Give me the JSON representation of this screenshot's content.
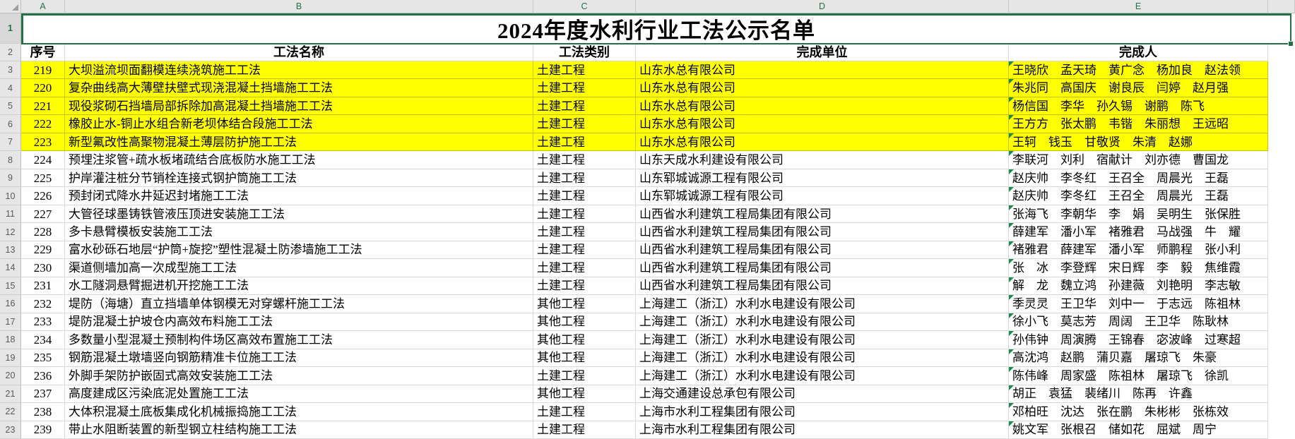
{
  "title": "2024年度水利行业工法公示名单",
  "column_letters": [
    "A",
    "B",
    "C",
    "D",
    "E"
  ],
  "row_numbers": [
    "1",
    "2",
    "3",
    "4",
    "5",
    "6",
    "7",
    "8",
    "9",
    "10",
    "11",
    "12",
    "13",
    "14",
    "15",
    "16",
    "17",
    "18",
    "19",
    "20",
    "21",
    "22",
    "23"
  ],
  "selection": {
    "selected_range": "A1",
    "selected_row_header": "1"
  },
  "table": {
    "headers": [
      "序号",
      "工法名称",
      "工法类别",
      "完成单位",
      "完成人"
    ],
    "rows": [
      [
        "219",
        "大坝溢流坝面翻模连续浇筑施工工法",
        "土建工程",
        "山东水总有限公司",
        "王晓欣　孟天琦　黄广念　杨加良　赵法领"
      ],
      [
        "220",
        "复杂曲线高大薄壁扶壁式现浇混凝土挡墙施工工法",
        "土建工程",
        "山东水总有限公司",
        "朱兆同　高国庆　谢良辰　闫婷　赵月强"
      ],
      [
        "221",
        "现役浆砌石挡墙局部拆除加高混凝土挡墙施工工法",
        "土建工程",
        "山东水总有限公司",
        "杨信国　李华　孙久锡　谢鹏　陈飞"
      ],
      [
        "222",
        "橡胶止水-铜止水组合新老坝体结合段施工工法",
        "土建工程",
        "山东水总有限公司",
        "王方方　张太鹏　韦锴　朱丽想　王远昭"
      ],
      [
        "223",
        "新型氟改性高聚物混凝土薄层防护施工工法",
        "土建工程",
        "山东水总有限公司",
        "王轲　钱玉　甘敬贤　朱清　赵娜"
      ],
      [
        "224",
        "预埋注浆管+疏水板堵疏结合底板防水施工工法",
        "土建工程",
        "山东天成水利建设有限公司",
        "李联河　刘利　宿献计　刘亦德　曹国龙"
      ],
      [
        "225",
        "护岸灌注桩分节销栓连接式钢护筒施工工法",
        "土建工程",
        "山东郓城诚源工程有限公司",
        "赵庆帅　李冬红　王召全　周晨光　王磊"
      ],
      [
        "226",
        "预封闭式降水井延迟封堵施工工法",
        "土建工程",
        "山东郓城诚源工程有限公司",
        "赵庆帅　李冬红　王召全　周晨光　王磊"
      ],
      [
        "227",
        "大管径球墨铸铁管液压顶进安装施工工法",
        "土建工程",
        "山西省水利建筑工程局集团有限公司",
        "张海飞　李朝华　李　娟　吴明生　张保胜"
      ],
      [
        "228",
        "多卡悬臂模板安装施工工法",
        "土建工程",
        "山西省水利建筑工程局集团有限公司",
        "薛建军　潘小军　褚雅君　马战强　牛　耀"
      ],
      [
        "229",
        "富水砂砾石地层“护筒+旋挖”塑性混凝土防渗墙施工工法",
        "土建工程",
        "山西省水利建筑工程局集团有限公司",
        "褚雅君　薛建军　潘小军　师鹏程　张小利"
      ],
      [
        "230",
        "渠道侧墙加高一次成型施工工法",
        "土建工程",
        "山西省水利建筑工程局集团有限公司",
        "张　冰　李登辉　宋日辉　李　毅　焦维霞"
      ],
      [
        "231",
        "水工隧洞悬臂掘进机开挖施工工法",
        "土建工程",
        "山西省水利建筑工程局集团有限公司",
        "解　龙　魏立鸿　孙建薇　刘艳明　李志敏"
      ],
      [
        "232",
        "堤防（海塘）直立挡墙单体钢模无对穿螺杆施工工法",
        "其他工程",
        "上海建工（浙江）水利水电建设有限公司",
        "季灵灵　王卫华　刘中一　于志远　陈祖林"
      ],
      [
        "233",
        "堤防混凝土护坡仓内高效布料施工工法",
        "其他工程",
        "上海建工（浙江）水利水电建设有限公司",
        "徐小飞　莫志芳　周阔　王卫华　陈耿林"
      ],
      [
        "234",
        "多数量小型混凝土预制构件场区高效布置施工工法",
        "其他工程",
        "上海建工（浙江）水利水电建设有限公司",
        "孙伟钟　周演腾　王锦春　宓波峰　过寒超"
      ],
      [
        "235",
        "钢筋混凝土墩墙竖向钢筋精准卡位施工工法",
        "其他工程",
        "上海建工（浙江）水利水电建设有限公司",
        "高沈鸿　赵鹏　蒲贝嘉　屠琼飞　朱豪"
      ],
      [
        "236",
        "外脚手架防护嵌固式高效安装施工工法",
        "土建工程",
        "上海建工（浙江）水利水电建设有限公司",
        "陈伟峰　周家盛　陈祖林　屠琼飞　徐凯"
      ],
      [
        "237",
        "高度建成区污染底泥处置施工工法",
        "其他工程",
        "上海交通建设总承包有限公司",
        "胡正　袁猛　裴绪川　陈再　许鑫"
      ],
      [
        "238",
        "大体积混凝土底板集成化机械振捣施工工法",
        "土建工程",
        "上海市水利工程集团有限公司",
        "邓柏旺　沈达　张在鹏　朱彬彬　张栋效"
      ],
      [
        "239",
        "带止水阻断装置的新型钢立柱结构施工工法",
        "土建工程",
        "上海市水利工程集团有限公司",
        "姚文军　张根召　储如花　屈斌　周宁"
      ]
    ],
    "highlighted_serials": [
      "219",
      "220",
      "221",
      "222",
      "223"
    ],
    "e_column_error_markers": true
  },
  "colors": {
    "selection_green": "#217346",
    "highlight_yellow": "#ffff00",
    "header_letter_green": "#217346",
    "chrome_bg": "#e6e6e6",
    "gridline": "#d9d9d9",
    "error_triangle_green": "#1f8a4c"
  }
}
